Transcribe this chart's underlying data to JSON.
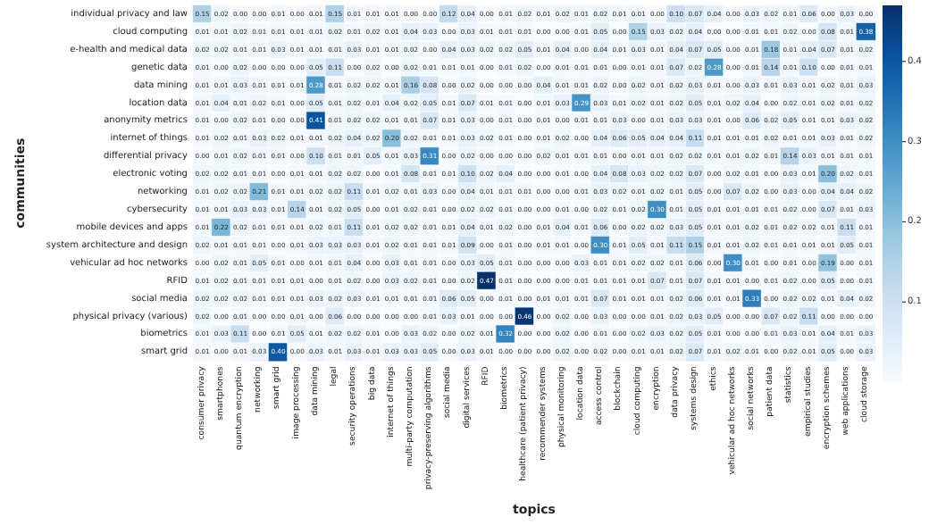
{
  "chart_data": {
    "type": "heatmap",
    "xlabel": "topics",
    "ylabel": "communities",
    "categories": [
      "consumer privacy",
      "smartphones",
      "quantum encryption",
      "networking",
      "smart grid",
      "image processing",
      "data mining",
      "legal",
      "security operations",
      "big data",
      "internet of things",
      "multi-party computation",
      "privacy-preserving algorithms",
      "social media",
      "digital services",
      "RFID",
      "biometrics",
      "healthcare (patient privacy)",
      "recommender systems",
      "physical monitoring",
      "location data",
      "access control",
      "blockchain",
      "cloud computing",
      "encryption",
      "data privacy",
      "systems design",
      "ethics",
      "vehicular ad hoc networks",
      "social networks",
      "patient data",
      "statistics",
      "empirical studies",
      "encryption schemes",
      "web applications",
      "cloud storage"
    ],
    "y_categories": [
      "individual privacy and law",
      "cloud computing",
      "e-health and medical data",
      "genetic data",
      "data mining",
      "location data",
      "anonymity metrics",
      "internet of things",
      "differential privacy",
      "electronic voting",
      "networking",
      "cybersecurity",
      "mobile devices and apps",
      "system architecture and design",
      "vehicular ad hoc networks",
      "RFID",
      "social media",
      "physical privacy (various)",
      "biometrics",
      "smart grid"
    ],
    "cells": [
      [
        0.15,
        0.02,
        0.0,
        0.0,
        0.01,
        0.0,
        0.01,
        0.15,
        0.01,
        0.01,
        0.01,
        0.0,
        0.0,
        0.12,
        0.04,
        0.0,
        0.01,
        0.02,
        0.01,
        0.02,
        0.01,
        0.02,
        0.01,
        0.01,
        0.0,
        0.1,
        0.07,
        0.04,
        0.0,
        0.03,
        0.02,
        0.01,
        0.06,
        0.0,
        0.03,
        0.0
      ],
      [
        0.01,
        0.01,
        0.02,
        0.01,
        0.01,
        0.01,
        0.01,
        0.02,
        0.01,
        0.02,
        0.01,
        0.04,
        0.03,
        0.0,
        0.03,
        0.01,
        0.01,
        0.01,
        0.0,
        0.0,
        0.01,
        0.05,
        0.0,
        0.15,
        0.03,
        0.02,
        0.04,
        0.0,
        0.0,
        0.01,
        0.01,
        0.02,
        0.0,
        0.08,
        0.01,
        0.38
      ],
      [
        0.02,
        0.02,
        0.01,
        0.01,
        0.03,
        0.01,
        0.01,
        0.01,
        0.03,
        0.01,
        0.01,
        0.02,
        0.0,
        0.04,
        0.03,
        0.02,
        0.02,
        0.05,
        0.01,
        0.04,
        0.0,
        0.04,
        0.01,
        0.03,
        0.01,
        0.04,
        0.07,
        0.05,
        0.0,
        0.01,
        0.18,
        0.01,
        0.04,
        0.07,
        0.01,
        0.02
      ],
      [
        0.01,
        0.0,
        0.02,
        0.0,
        0.0,
        0.0,
        0.05,
        0.11,
        0.0,
        0.02,
        0.0,
        0.02,
        0.01,
        0.01,
        0.01,
        0.0,
        0.01,
        0.02,
        0.0,
        0.01,
        0.01,
        0.01,
        0.0,
        0.01,
        0.01,
        0.07,
        0.02,
        0.28,
        0.0,
        0.01,
        0.14,
        0.01,
        0.1,
        0.0,
        0.01,
        0.01
      ],
      [
        0.01,
        0.01,
        0.03,
        0.01,
        0.01,
        0.01,
        0.28,
        0.01,
        0.02,
        0.02,
        0.01,
        0.16,
        0.08,
        0.0,
        0.02,
        0.0,
        0.0,
        0.0,
        0.04,
        0.01,
        0.01,
        0.02,
        0.0,
        0.02,
        0.01,
        0.02,
        0.03,
        0.01,
        0.0,
        0.03,
        0.01,
        0.03,
        0.01,
        0.02,
        0.01,
        0.03
      ],
      [
        0.01,
        0.04,
        0.01,
        0.02,
        0.01,
        0.0,
        0.05,
        0.01,
        0.02,
        0.01,
        0.04,
        0.02,
        0.05,
        0.01,
        0.07,
        0.01,
        0.01,
        0.0,
        0.01,
        0.03,
        0.29,
        0.03,
        0.01,
        0.02,
        0.01,
        0.02,
        0.05,
        0.01,
        0.02,
        0.04,
        0.0,
        0.02,
        0.01,
        0.02,
        0.01,
        0.02
      ],
      [
        0.01,
        0.0,
        0.02,
        0.01,
        0.0,
        0.0,
        0.41,
        0.01,
        0.02,
        0.02,
        0.01,
        0.01,
        0.07,
        0.01,
        0.03,
        0.0,
        0.01,
        0.0,
        0.01,
        0.0,
        0.01,
        0.01,
        0.03,
        0.0,
        0.01,
        0.03,
        0.03,
        0.01,
        0.0,
        0.06,
        0.02,
        0.05,
        0.01,
        0.01,
        0.03,
        0.02
      ],
      [
        0.01,
        0.02,
        0.01,
        0.03,
        0.02,
        0.01,
        0.01,
        0.02,
        0.04,
        0.02,
        0.2,
        0.02,
        0.01,
        0.01,
        0.03,
        0.02,
        0.01,
        0.0,
        0.01,
        0.02,
        0.0,
        0.04,
        0.06,
        0.05,
        0.04,
        0.04,
        0.11,
        0.01,
        0.01,
        0.01,
        0.02,
        0.01,
        0.01,
        0.03,
        0.01,
        0.02
      ],
      [
        0.0,
        0.01,
        0.02,
        0.01,
        0.01,
        0.0,
        0.1,
        0.01,
        0.01,
        0.05,
        0.01,
        0.03,
        0.31,
        0.0,
        0.02,
        0.0,
        0.0,
        0.0,
        0.02,
        0.01,
        0.01,
        0.01,
        0.0,
        0.01,
        0.01,
        0.02,
        0.02,
        0.01,
        0.01,
        0.02,
        0.01,
        0.14,
        0.03,
        0.01,
        0.01,
        0.01
      ],
      [
        0.02,
        0.02,
        0.01,
        0.01,
        0.0,
        0.01,
        0.01,
        0.02,
        0.02,
        0.0,
        0.01,
        0.08,
        0.01,
        0.01,
        0.1,
        0.02,
        0.04,
        0.0,
        0.0,
        0.01,
        0.0,
        0.04,
        0.08,
        0.03,
        0.02,
        0.02,
        0.07,
        0.0,
        0.02,
        0.01,
        0.0,
        0.03,
        0.01,
        0.2,
        0.02,
        0.01
      ],
      [
        0.01,
        0.02,
        0.02,
        0.21,
        0.01,
        0.01,
        0.02,
        0.02,
        0.11,
        0.01,
        0.02,
        0.01,
        0.03,
        0.0,
        0.04,
        0.01,
        0.01,
        0.01,
        0.0,
        0.0,
        0.01,
        0.03,
        0.02,
        0.01,
        0.02,
        0.01,
        0.05,
        0.0,
        0.07,
        0.02,
        0.0,
        0.03,
        0.0,
        0.04,
        0.04,
        0.02
      ],
      [
        0.01,
        0.01,
        0.03,
        0.03,
        0.01,
        0.14,
        0.01,
        0.02,
        0.05,
        0.0,
        0.01,
        0.02,
        0.01,
        0.0,
        0.02,
        0.02,
        0.01,
        0.0,
        0.0,
        0.01,
        0.0,
        0.02,
        0.01,
        0.02,
        0.3,
        0.01,
        0.05,
        0.01,
        0.01,
        0.01,
        0.01,
        0.02,
        0.0,
        0.07,
        0.01,
        0.03
      ],
      [
        0.01,
        0.22,
        0.02,
        0.01,
        0.01,
        0.01,
        0.02,
        0.01,
        0.11,
        0.01,
        0.02,
        0.02,
        0.01,
        0.01,
        0.04,
        0.01,
        0.02,
        0.0,
        0.01,
        0.04,
        0.01,
        0.06,
        0.0,
        0.02,
        0.02,
        0.03,
        0.05,
        0.01,
        0.01,
        0.02,
        0.01,
        0.02,
        0.02,
        0.01,
        0.11,
        0.01
      ],
      [
        0.02,
        0.01,
        0.01,
        0.01,
        0.0,
        0.01,
        0.03,
        0.03,
        0.03,
        0.01,
        0.02,
        0.01,
        0.01,
        0.01,
        0.09,
        0.0,
        0.01,
        0.0,
        0.01,
        0.01,
        0.0,
        0.3,
        0.01,
        0.05,
        0.01,
        0.11,
        0.15,
        0.01,
        0.01,
        0.02,
        0.01,
        0.01,
        0.01,
        0.01,
        0.05,
        0.01
      ],
      [
        0.0,
        0.02,
        0.01,
        0.05,
        0.01,
        0.0,
        0.01,
        0.01,
        0.04,
        0.0,
        0.03,
        0.01,
        0.01,
        0.0,
        0.03,
        0.05,
        0.01,
        0.0,
        0.0,
        0.0,
        0.03,
        0.01,
        0.01,
        0.02,
        0.02,
        0.01,
        0.06,
        0.0,
        0.3,
        0.01,
        0.0,
        0.01,
        0.0,
        0.19,
        0.0,
        0.01
      ],
      [
        0.01,
        0.02,
        0.01,
        0.01,
        0.01,
        0.01,
        0.0,
        0.01,
        0.02,
        0.0,
        0.03,
        0.02,
        0.01,
        0.0,
        0.02,
        0.47,
        0.01,
        0.0,
        0.0,
        0.0,
        0.01,
        0.01,
        0.01,
        0.01,
        0.07,
        0.01,
        0.07,
        0.01,
        0.01,
        0.0,
        0.01,
        0.02,
        0.0,
        0.05,
        0.0,
        0.01
      ],
      [
        0.02,
        0.02,
        0.02,
        0.01,
        0.01,
        0.01,
        0.03,
        0.02,
        0.03,
        0.01,
        0.01,
        0.01,
        0.01,
        0.06,
        0.05,
        0.0,
        0.01,
        0.0,
        0.01,
        0.01,
        0.01,
        0.07,
        0.01,
        0.01,
        0.01,
        0.02,
        0.06,
        0.01,
        0.01,
        0.33,
        0.0,
        0.02,
        0.02,
        0.01,
        0.04,
        0.02
      ],
      [
        0.02,
        0.0,
        0.01,
        0.0,
        0.0,
        0.01,
        0.0,
        0.06,
        0.0,
        0.0,
        0.0,
        0.0,
        0.01,
        0.03,
        0.01,
        0.0,
        0.0,
        0.46,
        0.0,
        0.02,
        0.0,
        0.03,
        0.0,
        0.0,
        0.01,
        0.02,
        0.03,
        0.05,
        0.0,
        0.0,
        0.07,
        0.02,
        0.11,
        0.0,
        0.0,
        0.0
      ],
      [
        0.01,
        0.03,
        0.11,
        0.0,
        0.01,
        0.05,
        0.01,
        0.02,
        0.02,
        0.01,
        0.0,
        0.03,
        0.02,
        0.0,
        0.02,
        0.01,
        0.32,
        0.0,
        0.0,
        0.02,
        0.0,
        0.01,
        0.0,
        0.02,
        0.03,
        0.02,
        0.05,
        0.01,
        0.0,
        0.0,
        0.01,
        0.03,
        0.01,
        0.04,
        0.01,
        0.03
      ],
      [
        0.01,
        0.0,
        0.01,
        0.03,
        0.4,
        0.0,
        0.03,
        0.01,
        0.03,
        0.01,
        0.03,
        0.03,
        0.05,
        0.0,
        0.03,
        0.01,
        0.0,
        0.0,
        0.0,
        0.02,
        0.0,
        0.02,
        0.0,
        0.01,
        0.01,
        0.02,
        0.07,
        0.01,
        0.02,
        0.01,
        0.0,
        0.02,
        0.01,
        0.05,
        0.0,
        0.03
      ]
    ],
    "cell_labels": [
      [
        "0.15",
        "0.02",
        "0.00",
        "0.00",
        "0.01",
        "0.00",
        "0.01",
        "0.15",
        "0.01",
        "0.01",
        "0.01",
        "0.00",
        "0.00",
        "0.12",
        "0.04",
        "0.00",
        "0.01",
        "0.02",
        "0.01",
        "0.02",
        "0.01",
        "0.02",
        "0.01",
        "0.01",
        "0.00",
        "0.10",
        "0.07",
        "0.04",
        "0.00",
        "0.03",
        "0.02",
        "0.01",
        "0.06",
        "0.00",
        "0.03",
        "0.00"
      ],
      [
        "0.01",
        "0.01",
        "0.02",
        "0.01",
        "0.01",
        "0.01",
        "0.01",
        "0.02",
        "0.01",
        "0.02",
        "0.01",
        "0.04",
        "0.03",
        "0.00",
        "0.03",
        "0.01",
        "0.01",
        "0.01",
        "0.00",
        "0.00",
        "0.01",
        "0.05",
        "0.00",
        "0.15",
        "0.03",
        "0.02",
        "0.04",
        "0.00",
        "0.00",
        "0.01",
        "0.01",
        "0.02",
        "0.00",
        "0.08",
        "0.01",
        "0.38"
      ],
      [
        "0.02",
        "0.02",
        "0.01",
        "0.01",
        "0.03",
        "0.01",
        "0.01",
        "0.01",
        "0.03",
        "0.01",
        "0.01",
        "0.02",
        "0.00",
        "0.04",
        "0.03",
        "0.02",
        "0.02",
        "0.05",
        "0.01",
        "0.04",
        "0.00",
        "0.04",
        "0.01",
        "0.03",
        "0.01",
        "0.04",
        "0.07",
        "0.05",
        "0.00",
        "0.01",
        "0.18",
        "0.01",
        "0.04",
        "0.07",
        "0.01",
        "0.02"
      ],
      [
        "0.01",
        "0.00",
        "0.02",
        "0.00",
        "0.00",
        "0.00",
        "0.05",
        "0.11",
        "0.00",
        "0.02",
        "0.00",
        "0.02",
        "0.01",
        "0.01",
        "0.01",
        "0.00",
        "0.01",
        "0.02",
        "0.00",
        "0.01",
        "0.01",
        "0.01",
        "0.00",
        "0.01",
        "0.01",
        "0.07",
        "0.02",
        "0.28",
        "0.00",
        "0.01",
        "0.14",
        "0.01",
        "0.10",
        "0.00",
        "0.01",
        "0.01"
      ],
      [
        "0.01",
        "0.01",
        "0.03",
        "0.01",
        "0.01",
        "0.01",
        "0.28",
        "0.01",
        "0.02",
        "0.02",
        "0.01",
        "0.16",
        "0.08",
        "0.00",
        "0.02",
        "0.00",
        "0.00",
        "0.00",
        "0.04",
        "0.01",
        "0.01",
        "0.02",
        "0.00",
        "0.02",
        "0.01",
        "0.02",
        "0.03",
        "0.01",
        "0.00",
        "0.03",
        "0.01",
        "0.03",
        "0.01",
        "0.02",
        "0.01",
        "0.03"
      ],
      [
        "0.01",
        "0.04",
        "0.01",
        "0.02",
        "0.01",
        "0.00",
        "0.05",
        "0.01",
        "0.02",
        "0.01",
        "0.04",
        "0.02",
        "0.05",
        "0.01",
        "0.07",
        "0.01",
        "0.01",
        "0.00",
        "0.01",
        "0.03",
        "0.29",
        "0.03",
        "0.01",
        "0.02",
        "0.01",
        "0.02",
        "0.05",
        "0.01",
        "0.02",
        "0.04",
        "0.00",
        "0.02",
        "0.01",
        "0.02",
        "0.01",
        "0.02"
      ],
      [
        "0.01",
        "0.00",
        "0.02",
        "0.01",
        "0.00",
        "0.00",
        "0.41",
        "0.01",
        "0.02",
        "0.02",
        "0.01",
        "0.01",
        "0.07",
        "0.01",
        "0.03",
        "0.00",
        "0.01",
        "0.00",
        "0.01",
        "0.00",
        "0.01",
        "0.01",
        "0.03",
        "0.00",
        "0.01",
        "0.03",
        "0.03",
        "0.01",
        "0.00",
        "0.06",
        "0.02",
        "0.05",
        "0.01",
        "0.01",
        "0.03",
        "0.02"
      ],
      [
        "0.01",
        "0.02",
        "0.01",
        "0.03",
        "0.02",
        "0.01",
        "0.01",
        "0.02",
        "0.04",
        "0.02",
        "0.20",
        "0.02",
        "0.01",
        "0.01",
        "0.03",
        "0.02",
        "0.01",
        "0.00",
        "0.01",
        "0.02",
        "0.00",
        "0.04",
        "0.06",
        "0.05",
        "0.04",
        "0.04",
        "0.11",
        "0.01",
        "0.01",
        "0.01",
        "0.02",
        "0.01",
        "0.01",
        "0.03",
        "0.01",
        "0.02"
      ],
      [
        "0.00",
        "0.01",
        "0.02",
        "0.01",
        "0.01",
        "0.00",
        "0.10",
        "0.01",
        "0.01",
        "0.05",
        "0.01",
        "0.03",
        "0.31",
        "0.00",
        "0.02",
        "0.00",
        "0.00",
        "0.00",
        "0.02",
        "0.01",
        "0.01",
        "0.01",
        "0.00",
        "0.01",
        "0.01",
        "0.02",
        "0.02",
        "0.01",
        "0.01",
        "0.02",
        "0.01",
        "0.14",
        "0.03",
        "0.01",
        "0.01",
        "0.01"
      ],
      [
        "0.02",
        "0.02",
        "0.01",
        "0.01",
        "0.00",
        "0.01",
        "0.01",
        "0.02",
        "0.02",
        "0.00",
        "0.01",
        "0.08",
        "0.01",
        "0.01",
        "0.10",
        "0.02",
        "0.04",
        "0.00",
        "0.00",
        "0.01",
        "0.00",
        "0.04",
        "0.08",
        "0.03",
        "0.02",
        "0.02",
        "0.07",
        "0.00",
        "0.02",
        "0.01",
        "0.00",
        "0.03",
        "0.01",
        "0.20",
        "0.02",
        "0.01"
      ],
      [
        "0.01",
        "0.02",
        "0.02",
        "0.21",
        "0.01",
        "0.01",
        "0.02",
        "0.02",
        "0.11",
        "0.01",
        "0.02",
        "0.01",
        "0.03",
        "0.00",
        "0.04",
        "0.01",
        "0.01",
        "0.01",
        "0.00",
        "0.00",
        "0.01",
        "0.03",
        "0.02",
        "0.01",
        "0.02",
        "0.01",
        "0.05",
        "0.00",
        "0.07",
        "0.02",
        "0.00",
        "0.03",
        "0.00",
        "0.04",
        "0.04",
        "0.02"
      ],
      [
        "0.01",
        "0.01",
        "0.03",
        "0.03",
        "0.01",
        "0.14",
        "0.01",
        "0.02",
        "0.05",
        "0.00",
        "0.01",
        "0.02",
        "0.01",
        "0.00",
        "0.02",
        "0.02",
        "0.01",
        "0.00",
        "0.00",
        "0.01",
        "0.00",
        "0.02",
        "0.01",
        "0.02",
        "0.30",
        "0.01",
        "0.05",
        "0.01",
        "0.01",
        "0.01",
        "0.01",
        "0.02",
        "0.00",
        "0.07",
        "0.01",
        "0.03"
      ],
      [
        "0.01",
        "0.22",
        "0.02",
        "0.01",
        "0.01",
        "0.01",
        "0.02",
        "0.01",
        "0.11",
        "0.01",
        "0.02",
        "0.02",
        "0.01",
        "0.01",
        "0.04",
        "0.01",
        "0.02",
        "0.00",
        "0.01",
        "0.04",
        "0.01",
        "0.06",
        "0.00",
        "0.02",
        "0.02",
        "0.03",
        "0.05",
        "0.01",
        "0.01",
        "0.02",
        "0.01",
        "0.02",
        "0.02",
        "0.01",
        "0.11",
        "0.01"
      ],
      [
        "0.02",
        "0.01",
        "0.01",
        "0.01",
        "0.00",
        "0.01",
        "0.03",
        "0.03",
        "0.03",
        "0.01",
        "0.02",
        "0.01",
        "0.01",
        "0.01",
        "0.09",
        "0.00",
        "0.01",
        "0.00",
        "0.01",
        "0.01",
        "0.00",
        "0.30",
        "0.01",
        "0.05",
        "0.01",
        "0.11",
        "0.15",
        "0.01",
        "0.01",
        "0.02",
        "0.01",
        "0.01",
        "0.01",
        "0.01",
        "0.05",
        "0.01"
      ],
      [
        "0.00",
        "0.02",
        "0.01",
        "0.05",
        "0.01",
        "0.00",
        "0.01",
        "0.01",
        "0.04",
        "0.00",
        "0.03",
        "0.01",
        "0.01",
        "0.00",
        "0.03",
        "0.05",
        "0.01",
        "0.00",
        "0.00",
        "0.00",
        "0.03",
        "0.01",
        "0.01",
        "0.02",
        "0.02",
        "0.01",
        "0.06",
        "0.00",
        "0.30",
        "0.01",
        "0.00",
        "0.01",
        "0.00",
        "0.19",
        "0.00",
        "0.01"
      ],
      [
        "0.01",
        "0.02",
        "0.01",
        "0.01",
        "0.01",
        "0.01",
        "0.00",
        "0.01",
        "0.02",
        "0.00",
        "0.03",
        "0.02",
        "0.01",
        "0.00",
        "0.02",
        "0.47",
        "0.01",
        "0.00",
        "0.00",
        "0.00",
        "0.01",
        "0.01",
        "0.01",
        "0.01",
        "0.07",
        "0.01",
        "0.07",
        "0.01",
        "0.01",
        "0.00",
        "0.01",
        "0.02",
        "0.00",
        "0.05",
        "0.00",
        "0.01"
      ],
      [
        "0.02",
        "0.02",
        "0.02",
        "0.01",
        "0.01",
        "0.01",
        "0.03",
        "0.02",
        "0.03",
        "0.01",
        "0.01",
        "0.01",
        "0.01",
        "0.06",
        "0.05",
        "0.00",
        "0.01",
        "0.00",
        "0.01",
        "0.01",
        "0.01",
        "0.07",
        "0.01",
        "0.01",
        "0.01",
        "0.02",
        "0.06",
        "0.01",
        "0.01",
        "0.33",
        "0.00",
        "0.02",
        "0.02",
        "0.01",
        "0.04",
        "0.02"
      ],
      [
        "0.02",
        "0.00",
        "0.01",
        "0.00",
        "0.00",
        "0.01",
        "0.00",
        "0.06",
        "0.00",
        "0.00",
        "0.00",
        "0.00",
        "0.01",
        "0.03",
        "0.01",
        "0.00",
        "0.00",
        "0.46",
        "0.00",
        "0.02",
        "0.00",
        "0.03",
        "0.00",
        "0.00",
        "0.01",
        "0.02",
        "0.03",
        "0.05",
        "0.00",
        "0.00",
        "0.07",
        "0.02",
        "0.11",
        "0.00",
        "0.00",
        "0.00"
      ],
      [
        "0.01",
        "0.03",
        "0.11",
        "0.00",
        "0.01",
        "0.05",
        "0.01",
        "0.02",
        "0.02",
        "0.01",
        "0.00",
        "0.03",
        "0.02",
        "0.00",
        "0.02",
        "0.01",
        "0.32",
        "0.00",
        "0.00",
        "0.02",
        "0.00",
        "0.01",
        "0.00",
        "0.02",
        "0.03",
        "0.02",
        "0.05",
        "0.01",
        "0.00",
        "0.00",
        "0.01",
        "0.03",
        "0.01",
        "0.04",
        "0.01",
        "0.03"
      ],
      [
        "0.01",
        "0.00",
        "0.01",
        "0.03",
        "0.40",
        "0.00",
        "0.03",
        "0.01",
        "0.03",
        "0.01",
        "0.03",
        "0.03",
        "0.05",
        "0.00",
        "0.03",
        "0.01",
        "0.00",
        "0.00",
        "0.00",
        "0.02",
        "0.00",
        "0.02",
        "0.00",
        "0.01",
        "0.01",
        "0.02",
        "0.07",
        "0.01",
        "0.02",
        "0.01",
        "0.00",
        "0.02",
        "0.01",
        "0.05",
        "0.00",
        "0.03"
      ]
    ],
    "clim": [
      0,
      0.47
    ],
    "cticks": [
      0.1,
      0.2,
      0.3,
      0.4
    ]
  }
}
